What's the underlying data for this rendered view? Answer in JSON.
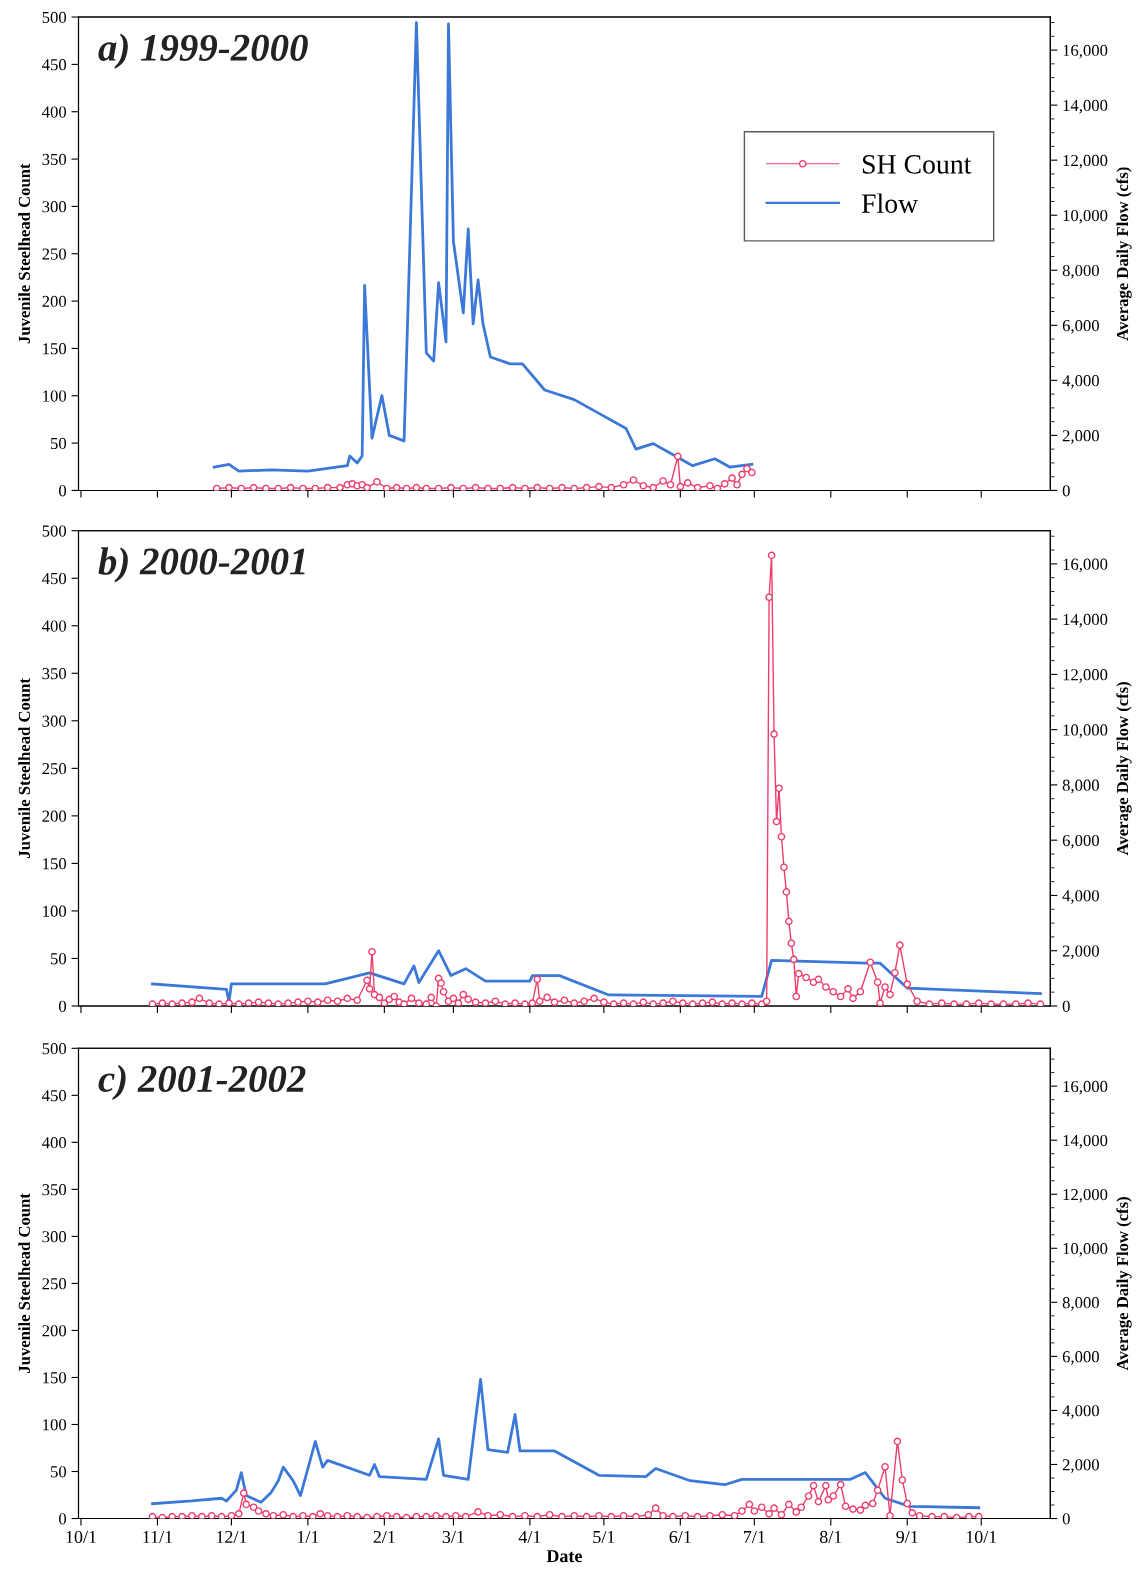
{
  "chart_data": [
    {
      "type": "line",
      "title": "a) 1999-2000",
      "ylabel": "Juvenile Steelhead Count",
      "y2label": "Average Daily Flow (cfs)",
      "legend": "top right",
      "grid": false,
      "tick_labels": "y",
      "xlim": [
        "2001-09-30",
        "2002-10-29"
      ],
      "xticks": [
        {
          "value": "2001-10-01",
          "label": null
        },
        {
          "value": "2001-11-01",
          "label": null
        },
        {
          "value": "2001-12-01",
          "label": null
        },
        {
          "value": "2002-01-01",
          "label": null
        },
        {
          "value": "2002-02-01",
          "label": null
        },
        {
          "value": "2002-03-01",
          "label": null
        },
        {
          "value": "2002-04-01",
          "label": null
        },
        {
          "value": "2002-05-01",
          "label": null
        },
        {
          "value": "2002-06-01",
          "label": null
        },
        {
          "value": "2002-07-01",
          "label": null
        },
        {
          "value": "2002-08-01",
          "label": null
        },
        {
          "value": "2002-09-01",
          "label": null
        },
        {
          "value": "2002-10-01",
          "label": null
        }
      ],
      "ylim": [
        0,
        500
      ],
      "yticks": [
        0,
        50,
        100,
        150,
        200,
        250,
        300,
        350,
        400,
        450,
        500
      ],
      "y2lim": [
        0,
        17200
      ],
      "y2ticks": [
        0,
        {
          "value": 2000,
          "label": "2,000"
        },
        {
          "value": 4000,
          "label": "4,000"
        },
        {
          "value": 6000,
          "label": "6,000"
        },
        {
          "value": 8000,
          "label": "8,000"
        },
        {
          "value": 10000,
          "label": "10,000"
        },
        {
          "value": 12000,
          "label": "12,000"
        },
        {
          "value": 14000,
          "label": "14,000"
        },
        {
          "value": 16000,
          "label": "16,000"
        }
      ],
      "series": [
        {
          "name": "SH Count",
          "color": "#ee3d6b",
          "marker": "circle",
          "x": [
            "2001-11-25",
            "2001-11-30",
            "2001-12-05",
            "2001-12-10",
            "2001-12-15",
            "2001-12-20",
            "2001-12-25",
            "2001-12-30",
            "2002-01-04",
            "2002-01-09",
            "2002-01-14",
            "2002-01-17",
            "2002-01-19",
            "2002-01-21",
            "2002-01-23",
            "2002-01-25",
            "2002-01-29",
            "2002-02-02",
            "2002-02-06",
            "2002-02-10",
            "2002-02-14",
            "2002-02-18",
            "2002-02-23",
            "2002-02-28",
            "2002-03-05",
            "2002-03-10",
            "2002-03-15",
            "2002-03-20",
            "2002-03-25",
            "2002-03-30",
            "2002-04-04",
            "2002-04-09",
            "2002-04-14",
            "2002-04-19",
            "2002-04-24",
            "2002-04-29",
            "2002-05-04",
            "2002-05-09",
            "2002-05-13",
            "2002-05-17",
            "2002-05-21",
            "2002-05-25",
            "2002-05-28",
            "2002-05-31",
            "2002-06-01",
            "2002-06-04",
            "2002-06-08",
            "2002-06-13",
            "2002-06-16",
            "2002-06-19",
            "2002-06-22",
            "2002-06-24",
            "2002-06-26",
            "2002-06-28",
            "2002-06-30"
          ],
          "values": [
            2,
            3,
            2,
            3,
            2,
            2,
            3,
            2,
            2,
            3,
            3,
            6,
            7,
            5,
            6,
            3,
            9,
            2,
            3,
            2,
            3,
            2,
            2,
            3,
            2,
            3,
            2,
            2,
            3,
            2,
            3,
            2,
            3,
            2,
            3,
            4,
            3,
            6,
            11,
            5,
            3,
            10,
            6,
            36,
            4,
            8,
            3,
            5,
            2,
            7,
            13,
            6,
            17,
            23,
            19
          ]
        },
        {
          "name": "Flow",
          "color": "#3b78d8",
          "marker": "none",
          "axis": "y2",
          "x": [
            "2001-11-24",
            "2001-11-30",
            "2001-12-04",
            "2001-12-17",
            "2002-01-01",
            "2002-01-17",
            "2002-01-18",
            "2002-01-21",
            "2002-01-23",
            "2002-01-24",
            "2002-01-27",
            "2002-01-31",
            "2002-02-03",
            "2002-02-09",
            "2002-02-14",
            "2002-02-18",
            "2002-02-21",
            "2002-02-23",
            "2002-02-26",
            "2002-02-27",
            "2002-03-01",
            "2002-03-05",
            "2002-03-07",
            "2002-03-09",
            "2002-03-11",
            "2002-03-13",
            "2002-03-16",
            "2002-03-24",
            "2002-03-29",
            "2002-04-07",
            "2002-04-19",
            "2002-04-27",
            "2002-05-10",
            "2002-05-14",
            "2002-05-21",
            "2002-05-28",
            "2002-06-06",
            "2002-06-15",
            "2002-06-21",
            "2002-06-30"
          ],
          "values": [
            850,
            950,
            700,
            750,
            700,
            900,
            1250,
            1000,
            1250,
            7450,
            1900,
            3450,
            2000,
            1800,
            17000,
            5000,
            4700,
            7550,
            5400,
            16950,
            9050,
            6450,
            9500,
            6050,
            7650,
            6050,
            4850,
            4600,
            4600,
            3650,
            3300,
            2900,
            2250,
            1500,
            1700,
            1350,
            900,
            1150,
            850,
            950
          ]
        }
      ]
    },
    {
      "type": "line",
      "title": "b) 2000-2001",
      "ylabel": "Juvenile Steelhead Count",
      "y2label": "Average Daily Flow (cfs)",
      "grid": false,
      "tick_labels": "y",
      "xlim": [
        "2001-09-30",
        "2002-10-29"
      ],
      "xticks": [
        {
          "value": "2001-10-01",
          "label": null
        },
        {
          "value": "2001-11-01",
          "label": null
        },
        {
          "value": "2001-12-01",
          "label": null
        },
        {
          "value": "2002-01-01",
          "label": null
        },
        {
          "value": "2002-02-01",
          "label": null
        },
        {
          "value": "2002-03-01",
          "label": null
        },
        {
          "value": "2002-04-01",
          "label": null
        },
        {
          "value": "2002-05-01",
          "label": null
        },
        {
          "value": "2002-06-01",
          "label": null
        },
        {
          "value": "2002-07-01",
          "label": null
        },
        {
          "value": "2002-08-01",
          "label": null
        },
        {
          "value": "2002-09-01",
          "label": null
        },
        {
          "value": "2002-10-01",
          "label": null
        }
      ],
      "ylim": [
        0,
        500
      ],
      "yticks": [
        0,
        50,
        100,
        150,
        200,
        250,
        300,
        350,
        400,
        450,
        500
      ],
      "y2lim": [
        0,
        17200
      ],
      "y2ticks": [
        0,
        {
          "value": 2000,
          "label": "2,000"
        },
        {
          "value": 4000,
          "label": "4,000"
        },
        {
          "value": 6000,
          "label": "6,000"
        },
        {
          "value": 8000,
          "label": "8,000"
        },
        {
          "value": 10000,
          "label": "10,000"
        },
        {
          "value": 12000,
          "label": "12,000"
        },
        {
          "value": 14000,
          "label": "14,000"
        },
        {
          "value": 16000,
          "label": "16,000"
        }
      ],
      "series": [
        {
          "color": "#ee3d6b",
          "marker": "circle",
          "x": [
            "2001-10-30",
            "2001-11-03",
            "2001-11-07",
            "2001-11-11",
            "2001-11-15",
            "2001-11-18",
            "2001-11-22",
            "2001-11-26",
            "2001-11-30",
            "2001-12-04",
            "2001-12-08",
            "2001-12-12",
            "2001-12-16",
            "2001-12-20",
            "2001-12-24",
            "2001-12-28",
            "2002-01-01",
            "2002-01-05",
            "2002-01-09",
            "2002-01-13",
            "2002-01-17",
            "2002-01-21",
            "2002-01-25",
            "2002-01-26",
            "2002-01-27",
            "2002-01-28",
            "2002-01-30",
            "2002-02-01",
            "2002-02-03",
            "2002-02-05",
            "2002-02-07",
            "2002-02-09",
            "2002-02-12",
            "2002-02-15",
            "2002-02-18",
            "2002-02-20",
            "2002-02-22",
            "2002-02-23",
            "2002-02-24",
            "2002-02-25",
            "2002-02-27",
            "2002-03-01",
            "2002-03-03",
            "2002-03-05",
            "2002-03-07",
            "2002-03-10",
            "2002-03-14",
            "2002-03-18",
            "2002-03-22",
            "2002-03-26",
            "2002-03-30",
            "2002-04-02",
            "2002-04-04",
            "2002-04-05",
            "2002-04-08",
            "2002-04-11",
            "2002-04-15",
            "2002-04-19",
            "2002-04-23",
            "2002-04-27",
            "2002-05-01",
            "2002-05-05",
            "2002-05-09",
            "2002-05-13",
            "2002-05-17",
            "2002-05-21",
            "2002-05-25",
            "2002-05-29",
            "2002-06-02",
            "2002-06-06",
            "2002-06-10",
            "2002-06-14",
            "2002-06-18",
            "2002-06-22",
            "2002-06-26",
            "2002-06-30",
            "2002-07-04",
            "2002-07-06",
            "2002-07-07",
            "2002-07-08",
            "2002-07-09",
            "2002-07-10",
            "2002-07-11",
            "2002-07-12",
            "2002-07-13",
            "2002-07-14",
            "2002-07-15",
            "2002-07-16",
            "2002-07-17",
            "2002-07-18",
            "2002-07-19",
            "2002-07-22",
            "2002-07-25",
            "2002-07-27",
            "2002-07-30",
            "2002-08-02",
            "2002-08-05",
            "2002-08-08",
            "2002-08-10",
            "2002-08-13",
            "2002-08-17",
            "2002-08-20",
            "2002-08-21",
            "2002-08-23",
            "2002-08-25",
            "2002-08-27",
            "2002-08-29",
            "2002-09-01",
            "2002-09-05",
            "2002-09-10",
            "2002-09-15",
            "2002-09-20",
            "2002-09-25",
            "2002-09-30",
            "2002-10-05",
            "2002-10-10",
            "2002-10-15",
            "2002-10-20",
            "2002-10-25"
          ],
          "values": [
            2,
            3,
            2,
            3,
            4,
            8,
            3,
            2,
            3,
            2,
            3,
            4,
            3,
            2,
            3,
            4,
            5,
            4,
            6,
            5,
            8,
            6,
            27,
            18,
            57,
            12,
            9,
            3,
            7,
            10,
            4,
            2,
            8,
            3,
            2,
            9,
            0,
            29,
            24,
            15,
            5,
            8,
            3,
            12,
            7,
            4,
            3,
            5,
            2,
            3,
            2,
            3,
            28,
            5,
            9,
            4,
            6,
            3,
            5,
            8,
            4,
            2,
            3,
            2,
            4,
            2,
            3,
            5,
            3,
            2,
            3,
            4,
            2,
            3,
            2,
            3,
            2,
            5,
            430,
            474,
            286,
            194,
            229,
            178,
            146,
            120,
            89,
            66,
            49,
            10,
            34,
            30,
            25,
            28,
            20,
            15,
            10,
            18,
            8,
            15,
            46,
            25,
            3,
            20,
            12,
            35,
            64,
            23,
            5,
            2,
            3,
            2,
            2,
            3,
            2,
            2,
            2,
            3,
            2
          ]
        },
        {
          "color": "#3b78d8",
          "marker": "none",
          "axis": "y2",
          "x": [
            "2001-10-30",
            "2001-11-29",
            "2001-11-30",
            "2001-12-01",
            "2002-01-08",
            "2002-01-26",
            "2002-02-09",
            "2002-02-13",
            "2002-02-15",
            "2002-02-23",
            "2002-02-28",
            "2002-03-06",
            "2002-03-14",
            "2002-04-01",
            "2002-04-02",
            "2002-04-13",
            "2002-05-03",
            "2002-07-04",
            "2002-07-08",
            "2002-08-16",
            "2002-08-21",
            "2002-09-01",
            "2002-10-25"
          ],
          "values": [
            800,
            600,
            150,
            800,
            800,
            1200,
            800,
            1450,
            850,
            2000,
            1100,
            1350,
            900,
            900,
            1100,
            1100,
            400,
            350,
            1650,
            1550,
            1550,
            650,
            450
          ]
        }
      ]
    },
    {
      "type": "line",
      "title": "c) 2001-2002",
      "xlabel": "Date",
      "ylabel": "Juvenile Steelhead Count",
      "y2label": "Average Daily Flow (cfs)",
      "grid": false,
      "xlim": [
        "2001-09-30",
        "2002-10-29"
      ],
      "xticks": [
        {
          "value": "2001-10-01",
          "label": "10/1"
        },
        {
          "value": "2001-11-01",
          "label": "11/1"
        },
        {
          "value": "2001-12-01",
          "label": "12/1"
        },
        {
          "value": "2002-01-01",
          "label": "1/1"
        },
        {
          "value": "2002-02-01",
          "label": "2/1"
        },
        {
          "value": "2002-03-01",
          "label": "3/1"
        },
        {
          "value": "2002-04-01",
          "label": "4/1"
        },
        {
          "value": "2002-05-01",
          "label": "5/1"
        },
        {
          "value": "2002-06-01",
          "label": "6/1"
        },
        {
          "value": "2002-07-01",
          "label": "7/1"
        },
        {
          "value": "2002-08-01",
          "label": "8/1"
        },
        {
          "value": "2002-09-01",
          "label": "9/1"
        },
        {
          "value": "2002-10-01",
          "label": "10/1"
        }
      ],
      "ylim": [
        0,
        500
      ],
      "yticks": [
        0,
        50,
        100,
        150,
        200,
        250,
        300,
        350,
        400,
        450,
        500
      ],
      "y2lim": [
        0,
        17400
      ],
      "y2ticks": [
        0,
        {
          "value": 2000,
          "label": "2,000"
        },
        {
          "value": 4000,
          "label": "4,000"
        },
        {
          "value": 6000,
          "label": "6,000"
        },
        {
          "value": 8000,
          "label": "8,000"
        },
        {
          "value": 10000,
          "label": "10,000"
        },
        {
          "value": 12000,
          "label": "12,000"
        },
        {
          "value": 14000,
          "label": "14,000"
        },
        {
          "value": 16000,
          "label": "16,000"
        }
      ],
      "series": [
        {
          "color": "#ee3d6b",
          "marker": "circle",
          "x": [
            "2001-10-30",
            "2001-11-03",
            "2001-11-07",
            "2001-11-11",
            "2001-11-15",
            "2001-11-19",
            "2001-11-23",
            "2001-11-27",
            "2001-12-01",
            "2001-12-04",
            "2001-12-06",
            "2001-12-07",
            "2001-12-10",
            "2001-12-12",
            "2001-12-15",
            "2001-12-18",
            "2001-12-22",
            "2001-12-26",
            "2001-12-30",
            "2002-01-03",
            "2002-01-06",
            "2002-01-09",
            "2002-01-13",
            "2002-01-17",
            "2002-01-21",
            "2002-01-25",
            "2002-01-29",
            "2002-02-02",
            "2002-02-06",
            "2002-02-10",
            "2002-02-14",
            "2002-02-18",
            "2002-02-22",
            "2002-02-26",
            "2002-03-02",
            "2002-03-06",
            "2002-03-11",
            "2002-03-15",
            "2002-03-20",
            "2002-03-25",
            "2002-03-30",
            "2002-04-04",
            "2002-04-09",
            "2002-04-14",
            "2002-04-19",
            "2002-04-24",
            "2002-04-29",
            "2002-05-04",
            "2002-05-09",
            "2002-05-14",
            "2002-05-19",
            "2002-05-22",
            "2002-05-25",
            "2002-05-29",
            "2002-06-03",
            "2002-06-08",
            "2002-06-13",
            "2002-06-18",
            "2002-06-23",
            "2002-06-26",
            "2002-06-29",
            "2002-07-01",
            "2002-07-04",
            "2002-07-07",
            "2002-07-09",
            "2002-07-12",
            "2002-07-15",
            "2002-07-18",
            "2002-07-20",
            "2002-07-23",
            "2002-07-25",
            "2002-07-27",
            "2002-07-30",
            "2002-07-31",
            "2002-08-02",
            "2002-08-05",
            "2002-08-07",
            "2002-08-10",
            "2002-08-13",
            "2002-08-15",
            "2002-08-18",
            "2002-08-20",
            "2002-08-23",
            "2002-08-25",
            "2002-08-28",
            "2002-08-30",
            "2002-09-01",
            "2002-09-03",
            "2002-09-06",
            "2002-09-11",
            "2002-09-16",
            "2002-09-21",
            "2002-09-26",
            "2002-09-30"
          ],
          "values": [
            2,
            1,
            2,
            2,
            3,
            2,
            3,
            2,
            3,
            5,
            27,
            15,
            12,
            8,
            5,
            3,
            4,
            2,
            3,
            2,
            5,
            3,
            2,
            3,
            2,
            1,
            2,
            3,
            2,
            1,
            2,
            2,
            3,
            2,
            3,
            2,
            7,
            3,
            4,
            2,
            3,
            2,
            4,
            2,
            3,
            2,
            3,
            2,
            3,
            2,
            4,
            11,
            3,
            2,
            3,
            2,
            3,
            4,
            3,
            8,
            15,
            8,
            12,
            5,
            11,
            4,
            15,
            7,
            12,
            24,
            35,
            18,
            35,
            20,
            24,
            36,
            13,
            10,
            9,
            14,
            16,
            30,
            55,
            3,
            82,
            41,
            16,
            6,
            3,
            2,
            2,
            1,
            2,
            2
          ]
        },
        {
          "color": "#3b78d8",
          "marker": "none",
          "axis": "y2",
          "x": [
            "2001-10-30",
            "2001-11-15",
            "2001-11-27",
            "2001-11-29",
            "2001-12-03",
            "2001-12-05",
            "2001-12-07",
            "2001-12-13",
            "2001-12-17",
            "2001-12-20",
            "2001-12-22",
            "2001-12-26",
            "2001-12-29",
            "2002-01-04",
            "2002-01-07",
            "2002-01-09",
            "2002-01-26",
            "2002-01-28",
            "2002-01-30",
            "2002-02-18",
            "2002-02-23",
            "2002-02-25",
            "2002-03-07",
            "2002-03-12",
            "2002-03-15",
            "2002-03-23",
            "2002-03-26",
            "2002-03-28",
            "2002-04-11",
            "2002-04-29",
            "2002-05-18",
            "2002-05-22",
            "2002-06-05",
            "2002-06-19",
            "2002-06-26",
            "2002-08-09",
            "2002-08-15",
            "2002-08-23",
            "2002-09-02",
            "2002-09-30"
          ],
          "values": [
            550,
            650,
            750,
            650,
            1050,
            1700,
            850,
            600,
            950,
            1400,
            1900,
            1400,
            850,
            2850,
            1900,
            2150,
            1600,
            2000,
            1550,
            1450,
            2950,
            1600,
            1450,
            5150,
            2550,
            2450,
            3850,
            2500,
            2500,
            1600,
            1550,
            1850,
            1400,
            1250,
            1450,
            1450,
            1700,
            750,
            450,
            400
          ]
        }
      ]
    }
  ]
}
